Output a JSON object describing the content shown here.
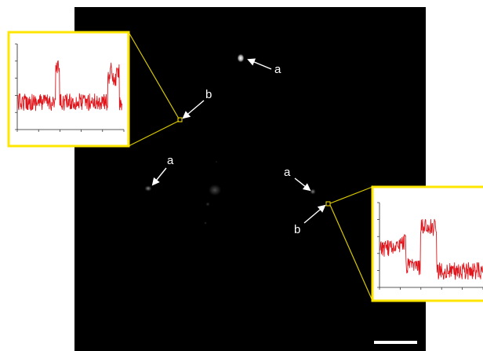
{
  "image": {
    "background_color": "#000000",
    "page_color": "#ffffff",
    "callout_color": "#ffe600",
    "trace_color": "#e0161c",
    "label_color": "#ffffff"
  },
  "labels": {
    "a_top": "a",
    "b_top": "b",
    "a_left": "a",
    "a_right": "a",
    "b_bottom": "b"
  },
  "insets": [
    {
      "name": "inset-left-trace",
      "pattern": "low-high-spike-low-burst"
    },
    {
      "name": "inset-right-trace",
      "pattern": "low-high-plateau-low"
    }
  ],
  "scale_bar": {
    "present": true
  }
}
